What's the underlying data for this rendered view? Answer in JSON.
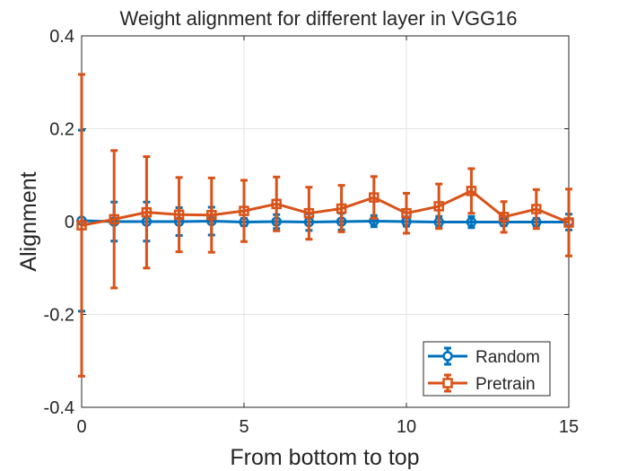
{
  "chart_data": {
    "type": "line",
    "title": "Weight alignment for different layer in VGG16",
    "xlabel": "From bottom to top",
    "ylabel": "Alignment",
    "xlim": [
      0,
      15
    ],
    "ylim": [
      -0.4,
      0.4
    ],
    "xticks": [
      0,
      5,
      10,
      15
    ],
    "xtick_labels": [
      "0",
      "5",
      "10",
      "15"
    ],
    "yticks": [
      -0.4,
      -0.2,
      0,
      0.2,
      0.4
    ],
    "ytick_labels": [
      "-0.4",
      "-0.2",
      "0",
      "0.2",
      "0.4"
    ],
    "grid": true,
    "legend_position": "bottom-right",
    "x": [
      0,
      1,
      2,
      3,
      4,
      5,
      6,
      7,
      8,
      9,
      10,
      11,
      12,
      13,
      14,
      15
    ],
    "series": [
      {
        "name": "Random",
        "color": "#0072BD",
        "marker": "circle",
        "values": [
          0.002,
          0.0,
          0.0,
          0.0,
          0.001,
          -0.001,
          0.0,
          -0.001,
          0.0,
          0.001,
          0.0,
          -0.001,
          -0.001,
          -0.001,
          -0.001,
          -0.001
        ],
        "errors": [
          0.195,
          0.042,
          0.042,
          0.03,
          0.03,
          0.008,
          0.015,
          0.018,
          0.018,
          0.012,
          0.01,
          0.012,
          0.012,
          0.008,
          0.008,
          0.017
        ]
      },
      {
        "name": "Pretrain",
        "color": "#D95319",
        "marker": "square",
        "values": [
          -0.008,
          0.005,
          0.02,
          0.015,
          0.014,
          0.023,
          0.038,
          0.018,
          0.028,
          0.052,
          0.018,
          0.033,
          0.066,
          0.01,
          0.027,
          -0.002
        ],
        "errors": [
          0.325,
          0.148,
          0.12,
          0.08,
          0.08,
          0.066,
          0.058,
          0.056,
          0.05,
          0.045,
          0.043,
          0.048,
          0.048,
          0.033,
          0.042,
          0.072
        ]
      }
    ]
  }
}
